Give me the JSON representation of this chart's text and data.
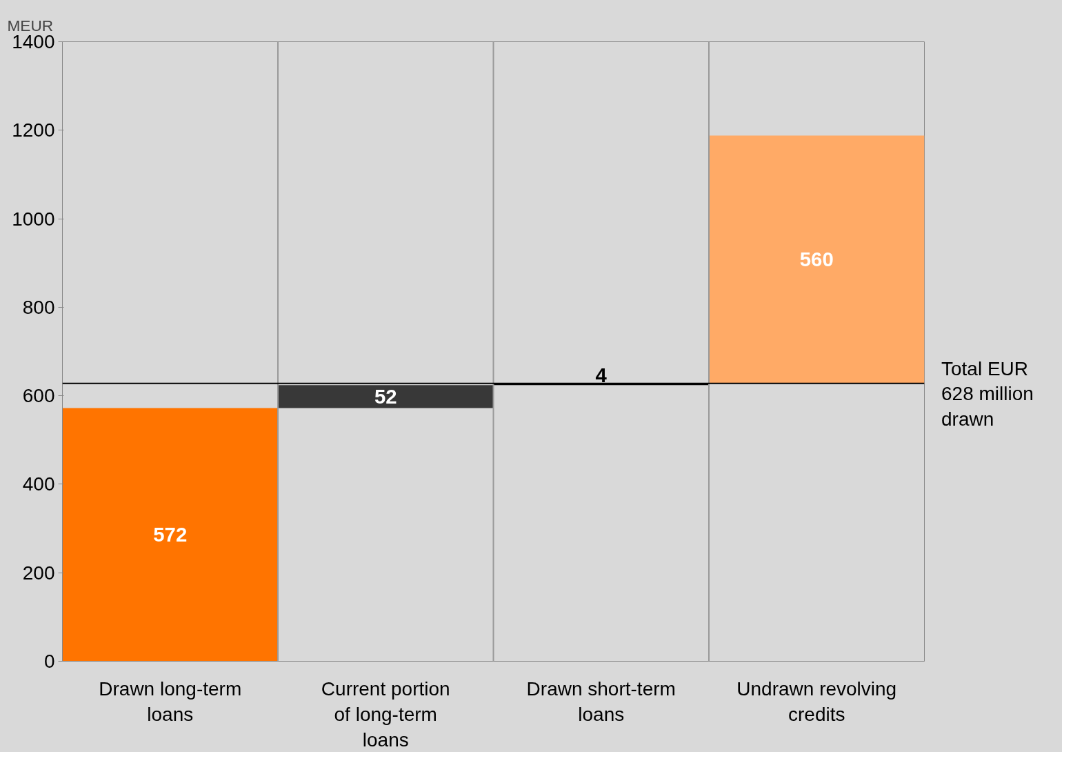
{
  "chart_data": {
    "type": "bar",
    "ylabel": "MEUR",
    "categories": [
      "Drawn long-term loans",
      "Current portion of long-term loans",
      "Drawn short-term loans",
      "Undrawn revolving credits"
    ],
    "values": [
      572,
      52,
      4,
      560
    ],
    "base": [
      0,
      572,
      624,
      628
    ],
    "colors": [
      "#ff7400",
      "#383838",
      "#000000",
      "#ffaa66"
    ],
    "data_labels": true,
    "ylim": [
      0,
      1400
    ],
    "yticks": [
      0,
      200,
      400,
      600,
      800,
      1000,
      1200,
      1400
    ],
    "ref_lines": [
      {
        "axis": "y",
        "value": 628,
        "label": "Total EUR 628 million drawn",
        "color": "#000000"
      }
    ],
    "grid": "x"
  }
}
